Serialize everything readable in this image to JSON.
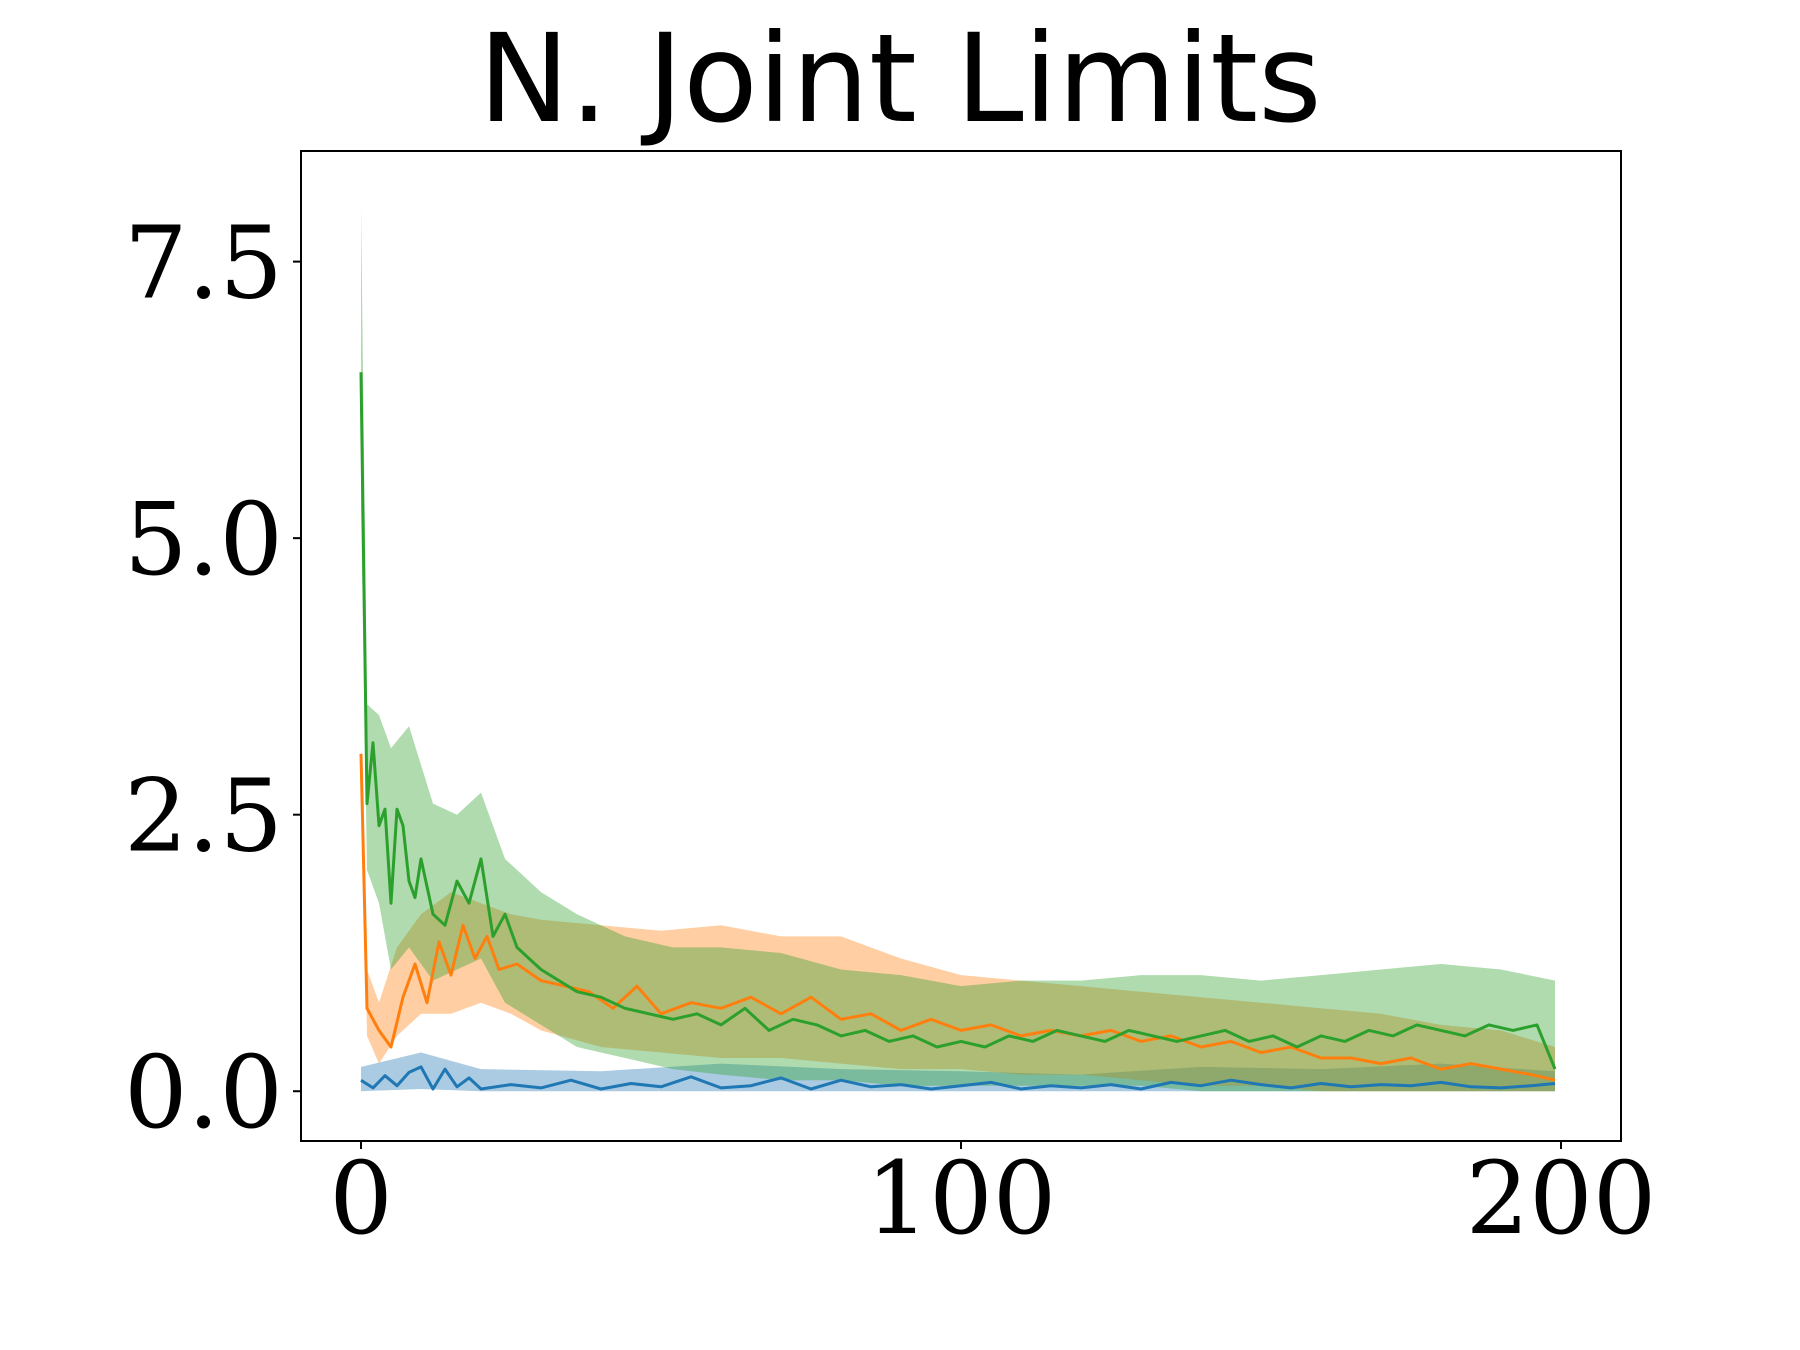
{
  "chart_data": {
    "type": "line",
    "title": "N. Joint Limits",
    "xlabel": "",
    "ylabel": "",
    "xlim": [
      -10,
      210
    ],
    "ylim": [
      -0.45,
      8.5
    ],
    "xticks": [
      0,
      100,
      200
    ],
    "xtick_labels": [
      "0",
      "100",
      "200"
    ],
    "yticks": [
      0.0,
      2.5,
      5.0,
      7.5
    ],
    "ytick_labels": [
      "0.0",
      "2.5",
      "5.0",
      "7.5"
    ],
    "grid": false,
    "legend": "none",
    "series": [
      {
        "color": "#1f77b4",
        "points": [
          [
            0,
            0.1
          ],
          [
            2,
            0.03
          ],
          [
            4,
            0.14
          ],
          [
            6,
            0.05
          ],
          [
            8,
            0.17
          ],
          [
            10,
            0.22
          ],
          [
            12,
            0.02
          ],
          [
            14,
            0.2
          ],
          [
            16,
            0.04
          ],
          [
            18,
            0.12
          ],
          [
            20,
            0.02
          ],
          [
            25,
            0.06
          ],
          [
            30,
            0.03
          ],
          [
            35,
            0.1
          ],
          [
            40,
            0.02
          ],
          [
            45,
            0.07
          ],
          [
            50,
            0.04
          ],
          [
            55,
            0.13
          ],
          [
            60,
            0.03
          ],
          [
            65,
            0.05
          ],
          [
            70,
            0.12
          ],
          [
            75,
            0.02
          ],
          [
            80,
            0.1
          ],
          [
            85,
            0.04
          ],
          [
            90,
            0.06
          ],
          [
            95,
            0.02
          ],
          [
            100,
            0.05
          ],
          [
            105,
            0.08
          ],
          [
            110,
            0.02
          ],
          [
            115,
            0.05
          ],
          [
            120,
            0.03
          ],
          [
            125,
            0.06
          ],
          [
            130,
            0.02
          ],
          [
            135,
            0.08
          ],
          [
            140,
            0.05
          ],
          [
            145,
            0.1
          ],
          [
            150,
            0.06
          ],
          [
            155,
            0.03
          ],
          [
            160,
            0.07
          ],
          [
            165,
            0.04
          ],
          [
            170,
            0.06
          ],
          [
            175,
            0.05
          ],
          [
            180,
            0.08
          ],
          [
            185,
            0.04
          ],
          [
            190,
            0.03
          ],
          [
            195,
            0.05
          ],
          [
            199,
            0.07
          ]
        ],
        "band": [
          [
            0,
            0.0,
            0.22
          ],
          [
            10,
            0.02,
            0.35
          ],
          [
            20,
            0.0,
            0.2
          ],
          [
            40,
            0.0,
            0.18
          ],
          [
            60,
            0.0,
            0.25
          ],
          [
            80,
            0.0,
            0.2
          ],
          [
            100,
            0.0,
            0.18
          ],
          [
            120,
            0.0,
            0.15
          ],
          [
            140,
            0.0,
            0.22
          ],
          [
            160,
            0.0,
            0.2
          ],
          [
            180,
            0.0,
            0.25
          ],
          [
            199,
            0.0,
            0.18
          ]
        ]
      },
      {
        "color": "#ff7f0e",
        "points": [
          [
            0,
            3.05
          ],
          [
            1,
            0.75
          ],
          [
            3,
            0.55
          ],
          [
            5,
            0.4
          ],
          [
            7,
            0.85
          ],
          [
            9,
            1.15
          ],
          [
            11,
            0.8
          ],
          [
            13,
            1.35
          ],
          [
            15,
            1.05
          ],
          [
            17,
            1.5
          ],
          [
            19,
            1.2
          ],
          [
            21,
            1.4
          ],
          [
            23,
            1.1
          ],
          [
            26,
            1.15
          ],
          [
            30,
            1.0
          ],
          [
            34,
            0.95
          ],
          [
            38,
            0.9
          ],
          [
            42,
            0.75
          ],
          [
            46,
            0.95
          ],
          [
            50,
            0.7
          ],
          [
            55,
            0.8
          ],
          [
            60,
            0.75
          ],
          [
            65,
            0.85
          ],
          [
            70,
            0.7
          ],
          [
            75,
            0.85
          ],
          [
            80,
            0.65
          ],
          [
            85,
            0.7
          ],
          [
            90,
            0.55
          ],
          [
            95,
            0.65
          ],
          [
            100,
            0.55
          ],
          [
            105,
            0.6
          ],
          [
            110,
            0.5
          ],
          [
            115,
            0.55
          ],
          [
            120,
            0.5
          ],
          [
            125,
            0.55
          ],
          [
            130,
            0.45
          ],
          [
            135,
            0.5
          ],
          [
            140,
            0.4
          ],
          [
            145,
            0.45
          ],
          [
            150,
            0.35
          ],
          [
            155,
            0.4
          ],
          [
            160,
            0.3
          ],
          [
            165,
            0.3
          ],
          [
            170,
            0.25
          ],
          [
            175,
            0.3
          ],
          [
            180,
            0.2
          ],
          [
            185,
            0.25
          ],
          [
            190,
            0.2
          ],
          [
            195,
            0.15
          ],
          [
            199,
            0.1
          ]
        ],
        "band": [
          [
            0,
            2.95,
            3.15
          ],
          [
            1,
            0.5,
            1.1
          ],
          [
            3,
            0.25,
            0.8
          ],
          [
            6,
            0.5,
            1.3
          ],
          [
            10,
            0.7,
            1.6
          ],
          [
            15,
            0.7,
            1.8
          ],
          [
            20,
            0.8,
            1.7
          ],
          [
            25,
            0.7,
            1.6
          ],
          [
            30,
            0.55,
            1.55
          ],
          [
            40,
            0.4,
            1.5
          ],
          [
            50,
            0.35,
            1.45
          ],
          [
            60,
            0.3,
            1.5
          ],
          [
            70,
            0.3,
            1.4
          ],
          [
            80,
            0.25,
            1.4
          ],
          [
            90,
            0.2,
            1.2
          ],
          [
            100,
            0.2,
            1.05
          ],
          [
            110,
            0.15,
            1.0
          ],
          [
            120,
            0.15,
            0.95
          ],
          [
            130,
            0.1,
            0.9
          ],
          [
            140,
            0.05,
            0.85
          ],
          [
            150,
            0.05,
            0.8
          ],
          [
            160,
            0.0,
            0.75
          ],
          [
            170,
            0.0,
            0.7
          ],
          [
            180,
            0.0,
            0.6
          ],
          [
            190,
            0.0,
            0.55
          ],
          [
            199,
            0.0,
            0.4
          ]
        ]
      },
      {
        "color": "#2ca02c",
        "points": [
          [
            0,
            6.5
          ],
          [
            1,
            2.6
          ],
          [
            2,
            3.15
          ],
          [
            3,
            2.4
          ],
          [
            4,
            2.55
          ],
          [
            5,
            1.7
          ],
          [
            6,
            2.55
          ],
          [
            7,
            2.4
          ],
          [
            8,
            1.9
          ],
          [
            9,
            1.75
          ],
          [
            10,
            2.1
          ],
          [
            12,
            1.6
          ],
          [
            14,
            1.5
          ],
          [
            16,
            1.9
          ],
          [
            18,
            1.7
          ],
          [
            20,
            2.1
          ],
          [
            22,
            1.4
          ],
          [
            24,
            1.6
          ],
          [
            26,
            1.3
          ],
          [
            28,
            1.2
          ],
          [
            30,
            1.1
          ],
          [
            33,
            1.0
          ],
          [
            36,
            0.9
          ],
          [
            40,
            0.85
          ],
          [
            44,
            0.75
          ],
          [
            48,
            0.7
          ],
          [
            52,
            0.65
          ],
          [
            56,
            0.7
          ],
          [
            60,
            0.6
          ],
          [
            64,
            0.75
          ],
          [
            68,
            0.55
          ],
          [
            72,
            0.65
          ],
          [
            76,
            0.6
          ],
          [
            80,
            0.5
          ],
          [
            84,
            0.55
          ],
          [
            88,
            0.45
          ],
          [
            92,
            0.5
          ],
          [
            96,
            0.4
          ],
          [
            100,
            0.45
          ],
          [
            104,
            0.4
          ],
          [
            108,
            0.5
          ],
          [
            112,
            0.45
          ],
          [
            116,
            0.55
          ],
          [
            120,
            0.5
          ],
          [
            124,
            0.45
          ],
          [
            128,
            0.55
          ],
          [
            132,
            0.5
          ],
          [
            136,
            0.45
          ],
          [
            140,
            0.5
          ],
          [
            144,
            0.55
          ],
          [
            148,
            0.45
          ],
          [
            152,
            0.5
          ],
          [
            156,
            0.4
          ],
          [
            160,
            0.5
          ],
          [
            164,
            0.45
          ],
          [
            168,
            0.55
          ],
          [
            172,
            0.5
          ],
          [
            176,
            0.6
          ],
          [
            180,
            0.55
          ],
          [
            184,
            0.5
          ],
          [
            188,
            0.6
          ],
          [
            192,
            0.55
          ],
          [
            196,
            0.6
          ],
          [
            199,
            0.2
          ]
        ],
        "band": [
          [
            0,
            5.3,
            8.0
          ],
          [
            1,
            2.0,
            3.5
          ],
          [
            3,
            1.7,
            3.4
          ],
          [
            5,
            1.1,
            3.1
          ],
          [
            8,
            1.3,
            3.3
          ],
          [
            12,
            1.0,
            2.6
          ],
          [
            16,
            1.1,
            2.5
          ],
          [
            20,
            1.2,
            2.7
          ],
          [
            24,
            0.8,
            2.1
          ],
          [
            30,
            0.6,
            1.8
          ],
          [
            36,
            0.4,
            1.6
          ],
          [
            44,
            0.3,
            1.4
          ],
          [
            52,
            0.2,
            1.3
          ],
          [
            60,
            0.15,
            1.3
          ],
          [
            70,
            0.1,
            1.25
          ],
          [
            80,
            0.1,
            1.1
          ],
          [
            90,
            0.05,
            1.05
          ],
          [
            100,
            0.05,
            0.95
          ],
          [
            110,
            0.05,
            1.0
          ],
          [
            120,
            0.05,
            1.0
          ],
          [
            130,
            0.05,
            1.05
          ],
          [
            140,
            0.0,
            1.05
          ],
          [
            150,
            0.0,
            1.0
          ],
          [
            160,
            0.0,
            1.05
          ],
          [
            170,
            0.0,
            1.1
          ],
          [
            180,
            0.0,
            1.15
          ],
          [
            190,
            0.0,
            1.1
          ],
          [
            199,
            0.0,
            1.0
          ]
        ]
      }
    ]
  }
}
